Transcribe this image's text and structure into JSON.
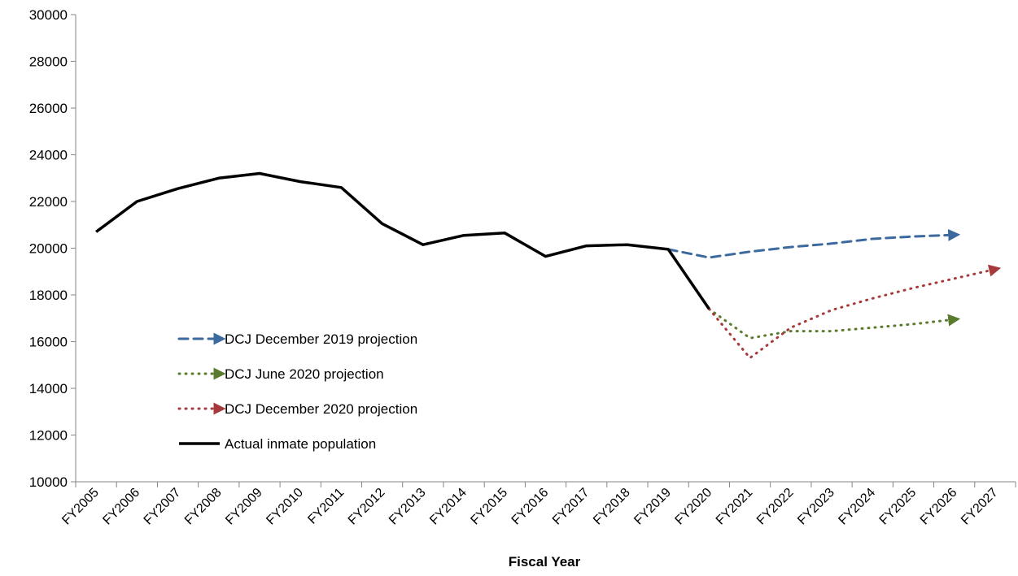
{
  "chart_data": {
    "type": "line",
    "title": "",
    "xlabel": "Fiscal Year",
    "ylabel": "",
    "ylim": [
      10000,
      30000
    ],
    "y_ticks": [
      10000,
      12000,
      14000,
      16000,
      18000,
      20000,
      22000,
      24000,
      26000,
      28000,
      30000
    ],
    "categories": [
      "FY2005",
      "FY2006",
      "FY2007",
      "FY2008",
      "FY2009",
      "FY2010",
      "FY2011",
      "FY2012",
      "FY2013",
      "FY2014",
      "FY2015",
      "FY2016",
      "FY2017",
      "FY2018",
      "FY2019",
      "FY2020",
      "FY2021",
      "FY2022",
      "FY2023",
      "FY2024",
      "FY2025",
      "FY2026",
      "FY2027"
    ],
    "grid": false,
    "legend_position": "lower-left",
    "series": [
      {
        "name": "DCJ December 2019 projection",
        "style": "dashed",
        "color": "#3D6A9E",
        "arrow_end": true,
        "values": [
          null,
          null,
          null,
          null,
          null,
          null,
          null,
          null,
          null,
          null,
          null,
          null,
          null,
          null,
          19950,
          19600,
          19850,
          20050,
          20200,
          20400,
          20500,
          20570,
          null
        ]
      },
      {
        "name": "DCJ June 2020 projection",
        "style": "dotted",
        "color": "#5A7A2E",
        "arrow_end": true,
        "values": [
          null,
          null,
          null,
          null,
          null,
          null,
          null,
          null,
          null,
          null,
          null,
          null,
          null,
          null,
          null,
          17400,
          16150,
          16450,
          16450,
          16600,
          16750,
          16950,
          null
        ]
      },
      {
        "name": "DCJ December 2020 projection",
        "style": "dotted",
        "color": "#A63A3A",
        "arrow_end": true,
        "values": [
          null,
          null,
          null,
          null,
          null,
          null,
          null,
          null,
          null,
          null,
          null,
          null,
          null,
          null,
          null,
          17400,
          15300,
          16600,
          17350,
          17850,
          18300,
          18700,
          19100
        ]
      },
      {
        "name": "Actual inmate population",
        "style": "solid",
        "color": "#000000",
        "arrow_end": false,
        "values": [
          20700,
          22000,
          22550,
          23000,
          23200,
          22850,
          22600,
          21050,
          20150,
          20550,
          20650,
          19650,
          20100,
          20150,
          19950,
          17400,
          null,
          null,
          null,
          null,
          null,
          null,
          null
        ]
      }
    ]
  }
}
